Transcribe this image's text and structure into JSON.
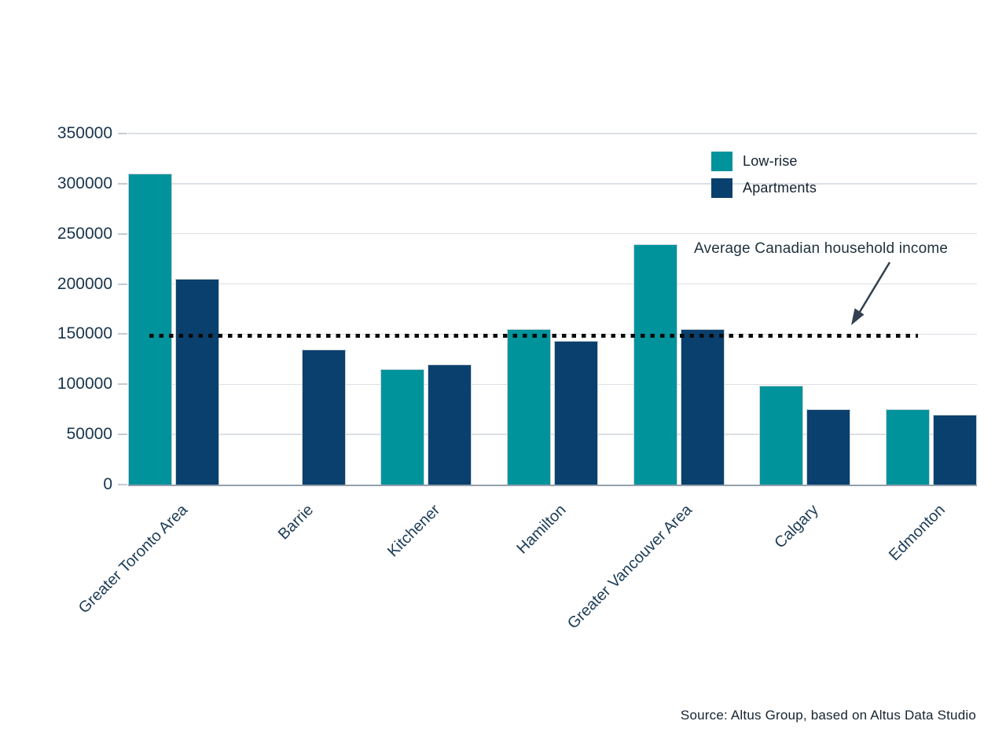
{
  "chart_data": {
    "type": "bar",
    "title": "",
    "categories": [
      "Greater Toronto Area",
      "Barrie",
      "Kitchener",
      "Hamilton",
      "Greater Vancouver Area",
      "Calgary",
      "Edmonton"
    ],
    "series": [
      {
        "name": "Low-rise",
        "color": "#00939B",
        "values": [
          310000,
          null,
          115000,
          155000,
          240000,
          99000,
          75000
        ]
      },
      {
        "name": "Apartments",
        "color": "#0A406D",
        "values": [
          205000,
          135000,
          120000,
          143000,
          155000,
          75000,
          70000
        ]
      }
    ],
    "reference_line": {
      "label": "Average Canadian household income",
      "value": 148000
    },
    "ylim": [
      0,
      350000
    ],
    "ytick_step": 50000,
    "ytick_labels": [
      "0",
      "50000",
      "100000",
      "150000",
      "200000",
      "250000",
      "300000",
      "350000"
    ],
    "grid": "horizontal",
    "legend_position": "top-right"
  },
  "source": {
    "text": "Source: Altus Group, based on Altus Data Studio"
  }
}
